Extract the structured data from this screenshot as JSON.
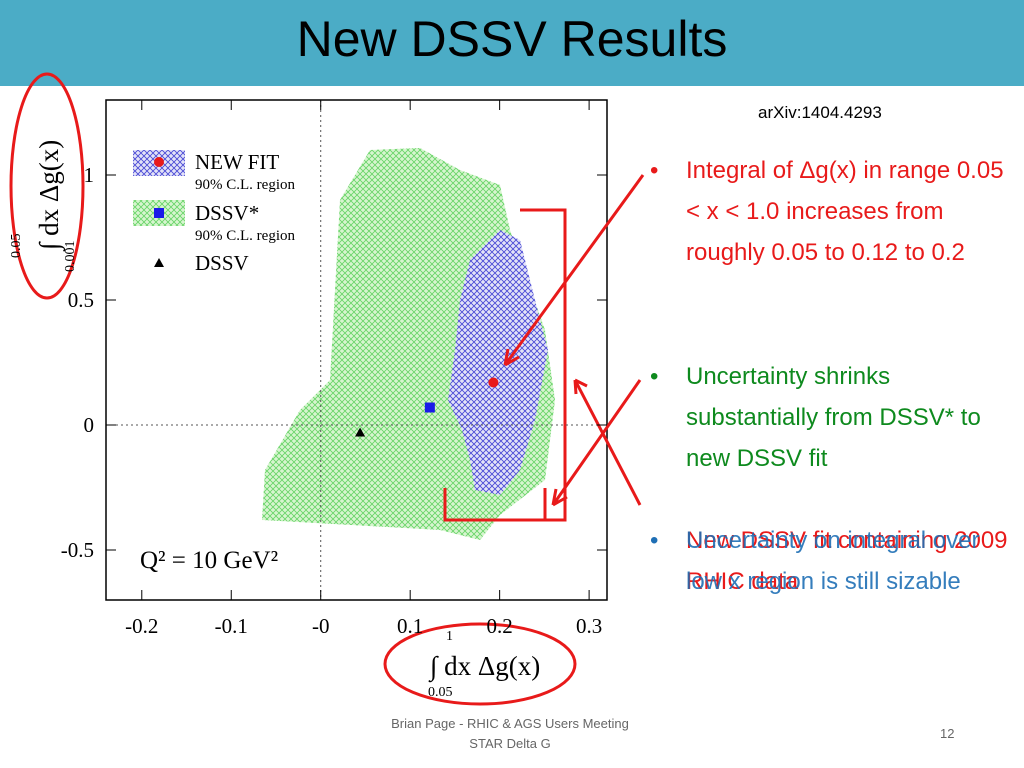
{
  "header": {
    "title": "New DSSV Results"
  },
  "reference": "arXiv:1404.4293",
  "bullets": [
    "Integral of Δg(x) in range 0.05 < x < 1.0 increases from roughly 0.05 to 0.12 to 0.2",
    "Uncertainty shrinks substantially from DSSV* to new DSSV fit",
    "New DSSV fit containing 2009 RHIC data",
    "Uncertainty on integral over low x region is still sizable"
  ],
  "footer": [
    "Brian Page - RHIC & AGS Users Meeting",
    "STAR Delta G"
  ],
  "page_number": "12",
  "chart_data": {
    "type": "scatter",
    "y_label": "∫ dx Δg(x)",
    "y_label_upper": "0.05",
    "y_label_lower": "0.001",
    "x_label": "∫ dx Δg(x)",
    "x_label_upper": "1",
    "x_label_lower": "0.05",
    "annotation": "Q² = 10 GeV²",
    "xlim": [
      -0.24,
      0.32
    ],
    "ylim": [
      -0.7,
      1.3
    ],
    "xticks": [
      -0.2,
      -0.1,
      {
        "value": 0,
        "label": "-0"
      },
      0.1,
      0.2,
      0.3
    ],
    "yticks": [
      -0.5,
      0,
      0.5,
      1
    ],
    "series": [
      {
        "name": "NEW FIT",
        "region_label": "90% C.L. region",
        "color": "#e81a1a",
        "marker": "circle",
        "x": [
          0.193
        ],
        "values": [
          0.17
        ]
      },
      {
        "name": "DSSV*",
        "region_label": "90% C.L. region",
        "color": "#1a1ae8",
        "marker": "square",
        "x": [
          0.122
        ],
        "values": [
          0.07
        ]
      },
      {
        "name": "DSSV",
        "color": "#000000",
        "marker": "triangle",
        "x": [
          0.044
        ],
        "values": [
          -0.03
        ]
      }
    ]
  }
}
